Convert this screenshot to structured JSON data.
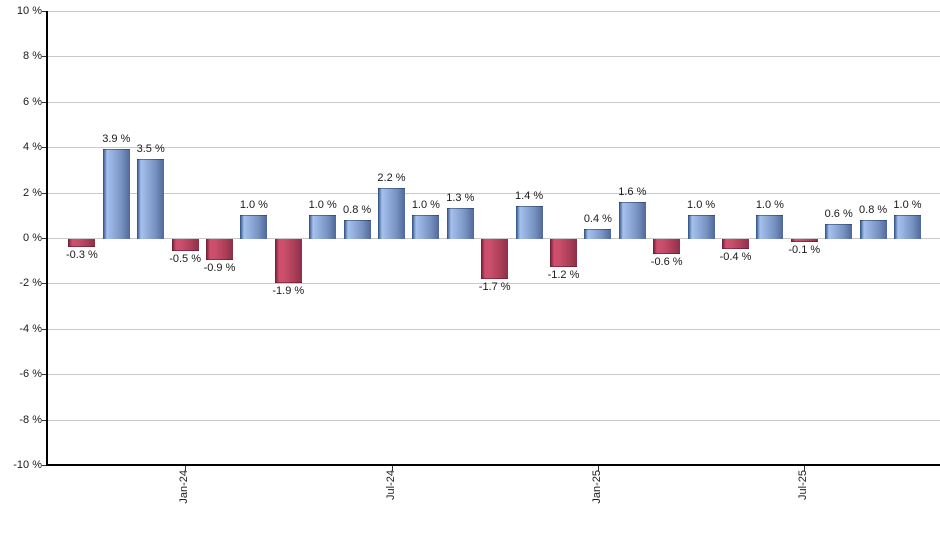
{
  "chart_data": {
    "type": "bar",
    "title": "",
    "unit": "%",
    "ylim": [
      -10,
      10
    ],
    "ytick_step": 2,
    "grid": true,
    "legend_position": "none",
    "y_tick_labels": [
      "10 %",
      "8 %",
      "6 %",
      "4 %",
      "2 %",
      "0 %",
      "-2 %",
      "-4 %",
      "-6 %",
      "-8 %",
      "-10 %"
    ],
    "x_ticks": [
      {
        "label": "Jan-24",
        "bar_index": 3
      },
      {
        "label": "Jul-24",
        "bar_index": 9
      },
      {
        "label": "Jan-25",
        "bar_index": 15
      },
      {
        "label": "Jul-25",
        "bar_index": 21
      }
    ],
    "values": [
      -0.3,
      3.9,
      3.5,
      -0.5,
      -0.9,
      1.0,
      -1.9,
      1.0,
      0.8,
      2.2,
      1.0,
      1.3,
      -1.7,
      1.4,
      -1.2,
      0.4,
      1.6,
      -0.6,
      1.0,
      -0.4,
      1.0,
      -0.1,
      0.6,
      0.8,
      1.0
    ],
    "bar_labels": [
      "-0.3 %",
      "3.9 %",
      "3.5 %",
      "-0.5 %",
      "-0.9 %",
      "1.0 %",
      "-1.9 %",
      "1.0 %",
      "0.8 %",
      "2.2 %",
      "1.0 %",
      "1.3 %",
      "-1.7 %",
      "1.4 %",
      "-1.2 %",
      "0.4 %",
      "1.6 %",
      "-0.6 %",
      "1.0 %",
      "-0.4 %",
      "1.0 %",
      "-0.1 %",
      "0.6 %",
      "0.8 %",
      "1.0 %"
    ],
    "colors": {
      "positive_gradient": [
        "#2c4d7e",
        "#a6c1ee",
        "#94b0dd",
        "#7690c0",
        "#50689a"
      ],
      "negative_gradient": [
        "#671e33",
        "#d14e6c",
        "#c94f6c",
        "#ae3f58",
        "#8c3048"
      ],
      "gridline": "#c9c9c9",
      "axis": "#000000",
      "label_text": "#1a1a1a"
    }
  }
}
